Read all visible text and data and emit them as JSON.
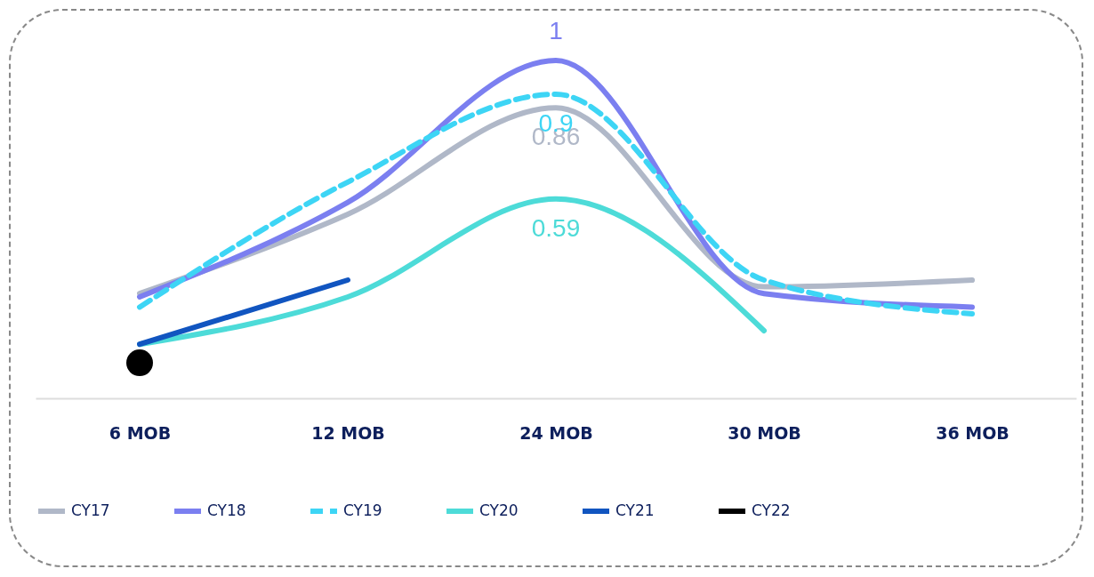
{
  "chart_data": {
    "type": "line",
    "categories": [
      "6 MOB",
      "12 MOB",
      "24 MOB",
      "30 MOB",
      "36 MOB"
    ],
    "tick_labels": "x",
    "grid": false,
    "legend": "bottom",
    "series": [
      {
        "name": "CY17",
        "color": "#b0b8c8",
        "values": [
          0.31,
          0.545,
          0.86,
          0.33,
          0.35
        ],
        "value_labels": [
          null,
          null,
          "0.86",
          null,
          null
        ]
      },
      {
        "name": "CY18",
        "color": "#7b7ff0",
        "values": [
          0.3,
          0.58,
          1,
          0.31,
          0.27
        ],
        "value_labels": [
          null,
          null,
          "1",
          null,
          null
        ]
      },
      {
        "name": "CY19",
        "color": "#3dd5f5",
        "line_style": "dashed",
        "values": [
          0.27,
          0.64,
          0.9,
          0.35,
          0.25
        ],
        "value_labels": [
          null,
          null,
          "0.9",
          null,
          null
        ]
      },
      {
        "name": "CY20",
        "color": "#4ddbd8",
        "values": [
          0.16,
          0.3,
          0.59,
          0.2,
          null
        ],
        "value_labels": [
          null,
          null,
          "0.59",
          null,
          null
        ]
      },
      {
        "name": "CY21",
        "color": "#1155c0",
        "values": [
          0.16,
          0.35,
          null,
          null,
          null
        ]
      },
      {
        "name": "CY22",
        "color": "#000000",
        "marker": "circle",
        "values": [
          0.105,
          null,
          null,
          null,
          null
        ]
      }
    ]
  }
}
